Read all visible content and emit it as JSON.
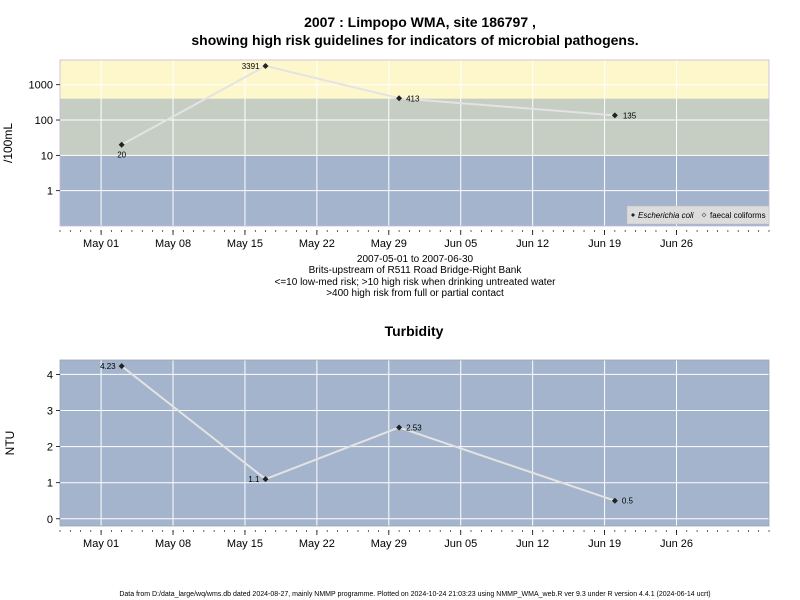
{
  "title_line1": "2007 : Limpopo WMA, site 186797 ,",
  "title_line2": "showing high risk guidelines for indicators of microbial pathogens.",
  "subtitle_lines": [
    "2007-05-01 to 2007-06-30",
    "Brits-upstream of R511 Road Bridge-Right Bank",
    "<=10 low-med risk; >10 high risk when drinking untreated water",
    ">400 high risk from full or partial contact"
  ],
  "footer": "Data from D:/data_large/wq/wms.db dated 2024-08-27, mainly NMMP programme. Plotted on 2024-10-24 21:03:23 using NMMP_WMA_web.R ver 9.3 under R version 4.4.1 (2024-06-14 ucrt)",
  "colors": {
    "background": "#ffffff",
    "panel": "#a3b4cc",
    "band_medium": "#c6cdc3",
    "band_high": "#fdf7cb",
    "line": "#e3e3e3",
    "grid": "#ffffff",
    "point": "#222222",
    "legend_bg": "#dcdcdc",
    "frame": "#c8b8d8"
  },
  "chart_data": [
    {
      "type": "line",
      "ylabel": "/100mL",
      "yscale": "log",
      "ylim": [
        0.1,
        5000
      ],
      "xlim": [
        "2007-04-27",
        "2007-07-05"
      ],
      "y_ticks": [
        1,
        10,
        100,
        1000
      ],
      "y_tick_labels": [
        "1",
        "10",
        "100",
        "1000"
      ],
      "x_ticks": [
        "2007-05-01",
        "2007-05-08",
        "2007-05-15",
        "2007-05-22",
        "2007-05-29",
        "2007-06-05",
        "2007-06-12",
        "2007-06-19",
        "2007-06-26"
      ],
      "x_tick_labels": [
        "May 01",
        "May 08",
        "May 15",
        "May 22",
        "May 29",
        "Jun 05",
        "Jun 12",
        "Jun 19",
        "Jun 26"
      ],
      "bands": [
        {
          "from": 0.1,
          "to": 10
        },
        {
          "from": 10,
          "to": 400
        },
        {
          "from": 400,
          "to": 5000
        }
      ],
      "legend": {
        "position": "bottom-right",
        "entries": [
          "Escherichia coli",
          "faecal coliforms"
        ]
      },
      "series": [
        {
          "name": "Escherichia coli",
          "x": [
            "2007-05-03",
            "2007-05-17",
            "2007-05-30",
            "2007-06-20"
          ],
          "values": [
            20,
            3391,
            413,
            135
          ],
          "labels": [
            "20",
            "3391",
            "413",
            "135"
          ]
        }
      ]
    },
    {
      "type": "line",
      "title": "Turbidity",
      "ylabel": "NTU",
      "ylim": [
        -0.2,
        4.4
      ],
      "xlim": [
        "2007-04-27",
        "2007-07-05"
      ],
      "y_ticks": [
        0,
        1,
        2,
        3,
        4
      ],
      "y_tick_labels": [
        "0",
        "1",
        "2",
        "3",
        "4"
      ],
      "x_ticks": [
        "2007-05-01",
        "2007-05-08",
        "2007-05-15",
        "2007-05-22",
        "2007-05-29",
        "2007-06-05",
        "2007-06-12",
        "2007-06-19",
        "2007-06-26"
      ],
      "x_tick_labels": [
        "May 01",
        "May 08",
        "May 15",
        "May 22",
        "May 29",
        "Jun 05",
        "Jun 12",
        "Jun 19",
        "Jun 26"
      ],
      "series": [
        {
          "x": [
            "2007-05-03",
            "2007-05-17",
            "2007-05-30",
            "2007-06-20"
          ],
          "values": [
            4.23,
            1.1,
            2.53,
            0.5
          ],
          "labels": [
            "4.23",
            "1.1",
            "2.53",
            "0.5"
          ]
        }
      ]
    }
  ]
}
